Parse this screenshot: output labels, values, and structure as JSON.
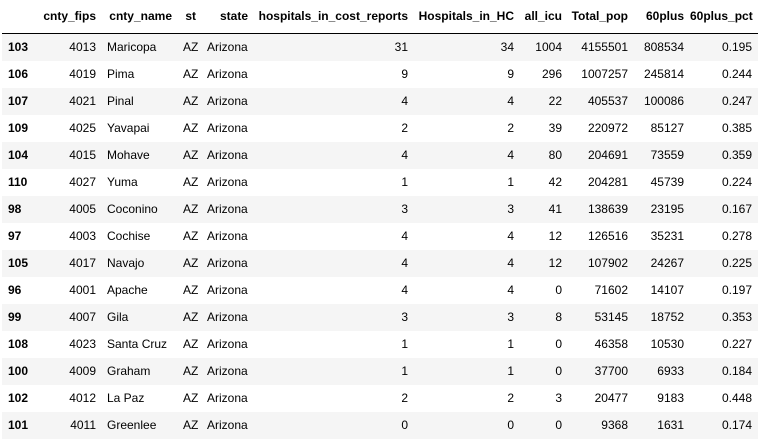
{
  "table": {
    "columns": [
      "cnty_fips",
      "cnty_name",
      "st",
      "state",
      "hospitals_in_cost_reports",
      "Hospitals_in_HC",
      "all_icu",
      "Total_pop",
      "60plus",
      "60plus_pct"
    ],
    "rows": [
      {
        "index": "103",
        "cells": [
          "4013",
          "Maricopa",
          "AZ",
          "Arizona",
          "31",
          "34",
          "1004",
          "4155501",
          "808534",
          "0.195"
        ]
      },
      {
        "index": "106",
        "cells": [
          "4019",
          "Pima",
          "AZ",
          "Arizona",
          "9",
          "9",
          "296",
          "1007257",
          "245814",
          "0.244"
        ]
      },
      {
        "index": "107",
        "cells": [
          "4021",
          "Pinal",
          "AZ",
          "Arizona",
          "4",
          "4",
          "22",
          "405537",
          "100086",
          "0.247"
        ]
      },
      {
        "index": "109",
        "cells": [
          "4025",
          "Yavapai",
          "AZ",
          "Arizona",
          "2",
          "2",
          "39",
          "220972",
          "85127",
          "0.385"
        ]
      },
      {
        "index": "104",
        "cells": [
          "4015",
          "Mohave",
          "AZ",
          "Arizona",
          "4",
          "4",
          "80",
          "204691",
          "73559",
          "0.359"
        ]
      },
      {
        "index": "110",
        "cells": [
          "4027",
          "Yuma",
          "AZ",
          "Arizona",
          "1",
          "1",
          "42",
          "204281",
          "45739",
          "0.224"
        ]
      },
      {
        "index": "98",
        "cells": [
          "4005",
          "Coconino",
          "AZ",
          "Arizona",
          "3",
          "3",
          "41",
          "138639",
          "23195",
          "0.167"
        ]
      },
      {
        "index": "97",
        "cells": [
          "4003",
          "Cochise",
          "AZ",
          "Arizona",
          "4",
          "4",
          "12",
          "126516",
          "35231",
          "0.278"
        ]
      },
      {
        "index": "105",
        "cells": [
          "4017",
          "Navajo",
          "AZ",
          "Arizona",
          "4",
          "4",
          "12",
          "107902",
          "24267",
          "0.225"
        ]
      },
      {
        "index": "96",
        "cells": [
          "4001",
          "Apache",
          "AZ",
          "Arizona",
          "4",
          "4",
          "0",
          "71602",
          "14107",
          "0.197"
        ]
      },
      {
        "index": "99",
        "cells": [
          "4007",
          "Gila",
          "AZ",
          "Arizona",
          "3",
          "3",
          "8",
          "53145",
          "18752",
          "0.353"
        ]
      },
      {
        "index": "108",
        "cells": [
          "4023",
          "Santa Cruz",
          "AZ",
          "Arizona",
          "1",
          "1",
          "0",
          "46358",
          "10530",
          "0.227"
        ]
      },
      {
        "index": "100",
        "cells": [
          "4009",
          "Graham",
          "AZ",
          "Arizona",
          "1",
          "1",
          "0",
          "37700",
          "6933",
          "0.184"
        ]
      },
      {
        "index": "102",
        "cells": [
          "4012",
          "La Paz",
          "AZ",
          "Arizona",
          "2",
          "2",
          "3",
          "20477",
          "9183",
          "0.448"
        ]
      },
      {
        "index": "101",
        "cells": [
          "4011",
          "Greenlee",
          "AZ",
          "Arizona",
          "0",
          "0",
          "0",
          "9368",
          "1631",
          "0.174"
        ]
      }
    ]
  }
}
